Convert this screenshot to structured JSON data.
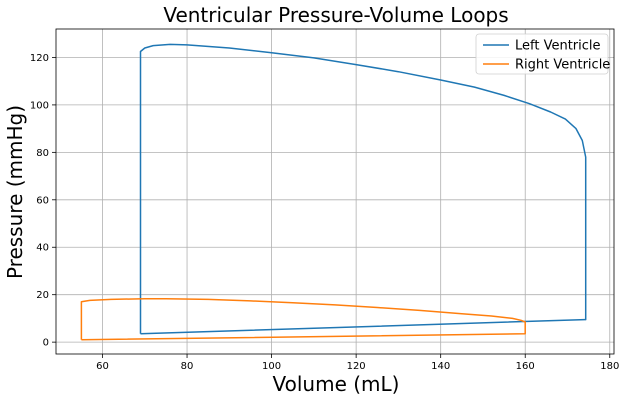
{
  "chart_data": {
    "type": "line",
    "title": "Ventricular Pressure-Volume Loops",
    "xlabel": "Volume (mL)",
    "ylabel": "Pressure (mmHg)",
    "xlim": [
      49,
      181
    ],
    "ylim": [
      -5,
      132
    ],
    "xticks": [
      60,
      80,
      100,
      120,
      140,
      160,
      180
    ],
    "yticks": [
      0,
      20,
      40,
      60,
      80,
      100,
      120
    ],
    "grid": true,
    "legend_position": "top-right",
    "series": [
      {
        "name": "Left Ventricle",
        "color": "#1f77b4",
        "x": [
          69,
          174,
          174.3,
          174.3,
          173.5,
          172,
          169.5,
          166,
          161,
          155,
          148,
          140,
          130,
          120,
          110,
          100,
          90,
          80,
          76,
          72,
          70,
          69,
          69
        ],
        "y": [
          3.5,
          9.5,
          9.5,
          78,
          85,
          90,
          94,
          97,
          100.5,
          104,
          107.5,
          110.5,
          114,
          117,
          119.8,
          122,
          124,
          125.3,
          125.5,
          125,
          124,
          122.5,
          3.5
        ]
      },
      {
        "name": "Right Ventricle",
        "color": "#ff7f0e",
        "x": [
          55,
          160,
          160,
          159,
          157,
          152,
          145,
          135,
          125,
          115,
          105,
          95,
          85,
          75,
          70,
          62,
          57,
          55,
          55
        ],
        "y": [
          1,
          3.5,
          8.5,
          9.2,
          10,
          11,
          12,
          13.4,
          14.6,
          15.7,
          16.6,
          17.4,
          18,
          18.3,
          18.3,
          18,
          17.6,
          17,
          1
        ]
      }
    ]
  }
}
